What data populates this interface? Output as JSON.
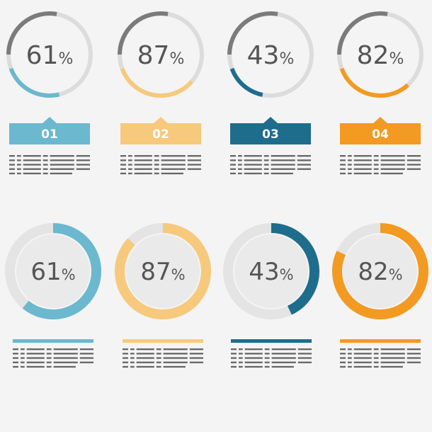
{
  "colors": {
    "background": "#f4f4f4",
    "track": "#dcdcdc",
    "dark_arc": "#7b7b7b",
    "inner_fill": "#eaeaea",
    "text": "#555555",
    "placeholder_text": "#666666"
  },
  "top_row": {
    "items": [
      {
        "value": 61,
        "number_text": "61",
        "percent_sign": "%",
        "badge": "01",
        "color": "#6bb8cf"
      },
      {
        "value": 87,
        "number_text": "87",
        "percent_sign": "%",
        "badge": "02",
        "color": "#f7c97c"
      },
      {
        "value": 43,
        "number_text": "43",
        "percent_sign": "%",
        "badge": "03",
        "color": "#1e6d8c"
      },
      {
        "value": 82,
        "number_text": "82",
        "percent_sign": "%",
        "badge": "04",
        "color": "#f29a22"
      }
    ]
  },
  "bottom_row": {
    "items": [
      {
        "value": 61,
        "number_text": "61",
        "percent_sign": "%",
        "color": "#6bb8cf"
      },
      {
        "value": 87,
        "number_text": "87",
        "percent_sign": "%",
        "color": "#f7c97c"
      },
      {
        "value": 43,
        "number_text": "43",
        "percent_sign": "%",
        "color": "#1e6d8c"
      },
      {
        "value": 82,
        "number_text": "82",
        "percent_sign": "%",
        "color": "#f29a22"
      }
    ]
  },
  "chart_data": {
    "type": "pie",
    "categories": [
      "01",
      "02",
      "03",
      "04"
    ],
    "values": [
      61,
      87,
      43,
      82
    ],
    "unit": "%"
  }
}
